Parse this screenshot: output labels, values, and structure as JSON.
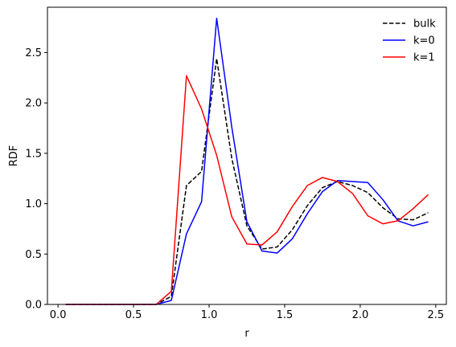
{
  "chart_data": {
    "type": "line",
    "title": "",
    "xlabel": "r",
    "ylabel": "RDF",
    "xlim": [
      -0.07,
      2.57
    ],
    "ylim": [
      0,
      2.95
    ],
    "xticks": [
      0.0,
      0.5,
      1.0,
      1.5,
      2.0,
      2.5
    ],
    "xtick_labels": [
      "0.0",
      "0.5",
      "1.0",
      "1.5",
      "2.0",
      "2.5"
    ],
    "yticks": [
      0.0,
      0.5,
      1.0,
      1.5,
      2.0,
      2.5
    ],
    "ytick_labels": [
      "0.0",
      "0.5",
      "1.0",
      "1.5",
      "2.0",
      "2.5"
    ],
    "grid": false,
    "legend_position": "top-right",
    "x": [
      0.05,
      0.15,
      0.25,
      0.35,
      0.45,
      0.55,
      0.65,
      0.75,
      0.85,
      0.95,
      1.05,
      1.15,
      1.25,
      1.35,
      1.45,
      1.55,
      1.65,
      1.75,
      1.85,
      1.95,
      2.05,
      2.15,
      2.25,
      2.35,
      2.45
    ],
    "series": [
      {
        "name": "bulk",
        "color": "#000000",
        "dash": "dashed",
        "values": [
          0.0,
          0.0,
          0.0,
          0.0,
          0.0,
          0.0,
          0.0,
          0.08,
          1.18,
          1.32,
          2.44,
          1.45,
          0.78,
          0.55,
          0.57,
          0.74,
          0.98,
          1.16,
          1.22,
          1.18,
          1.11,
          0.96,
          0.85,
          0.84,
          0.91
        ]
      },
      {
        "name": "k=0",
        "color": "#0000ff",
        "dash": "solid",
        "values": [
          0.0,
          0.0,
          0.0,
          0.0,
          0.0,
          0.0,
          0.0,
          0.04,
          0.7,
          1.02,
          2.84,
          1.76,
          0.82,
          0.53,
          0.51,
          0.65,
          0.9,
          1.12,
          1.23,
          1.22,
          1.21,
          1.04,
          0.83,
          0.78,
          0.82
        ]
      },
      {
        "name": "k=1",
        "color": "#ff0000",
        "dash": "solid",
        "values": [
          0.0,
          0.0,
          0.0,
          0.0,
          0.0,
          0.0,
          0.0,
          0.13,
          2.27,
          1.94,
          1.48,
          0.87,
          0.6,
          0.59,
          0.72,
          0.97,
          1.18,
          1.26,
          1.22,
          1.1,
          0.88,
          0.8,
          0.83,
          0.95,
          1.09
        ]
      }
    ]
  }
}
